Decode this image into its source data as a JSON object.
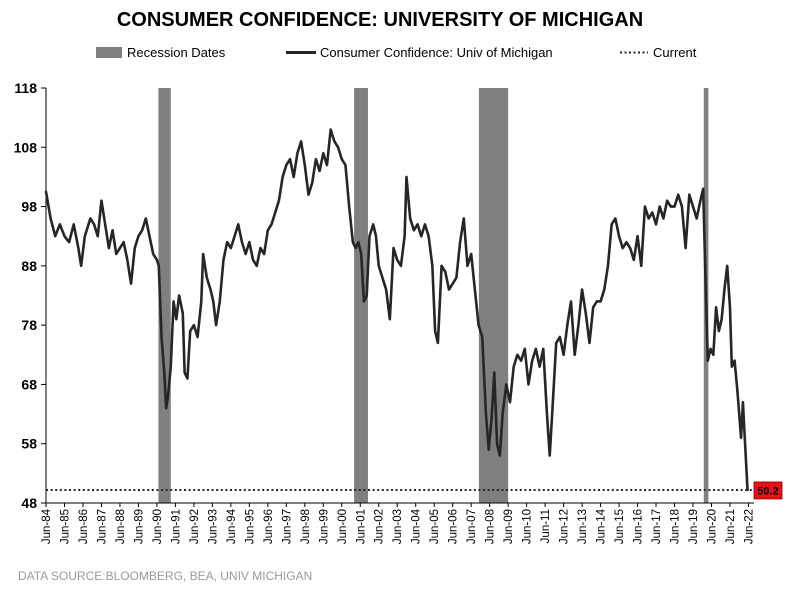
{
  "chart_data": {
    "type": "line",
    "title": "CONSUMER CONFIDENCE: UNIVERSITY OF MICHIGAN",
    "xlabel": "",
    "ylabel": "",
    "ylim": [
      48,
      118
    ],
    "yticks": [
      48,
      58,
      68,
      78,
      88,
      98,
      108,
      118
    ],
    "xlim": [
      1984.5,
      2022.8
    ],
    "x_tick_labels": [
      "Jun-84",
      "Jun-85",
      "Jun-86",
      "Jun-87",
      "Jun-88",
      "Jun-89",
      "Jun-90",
      "Jun-91",
      "Jun-92",
      "Jun-93",
      "Jun-94",
      "Jun-95",
      "Jun-96",
      "Jun-97",
      "Jun-98",
      "Jun-99",
      "Jun-00",
      "Jun-01",
      "Jun-02",
      "Jun-03",
      "Jun-04",
      "Jun-05",
      "Jun-06",
      "Jun-07",
      "Jun-08",
      "Jun-09",
      "Jun-10",
      "Jun-11",
      "Jun-12",
      "Jun-13",
      "Jun-14",
      "Jun-15",
      "Jun-16",
      "Jun-17",
      "Jun-18",
      "Jun-19",
      "Jun-20",
      "Jun-21",
      "Jun-22"
    ],
    "legend": {
      "position": "top",
      "items": [
        {
          "label": "Recession Dates",
          "style": "bar",
          "color": "#7f7f7f"
        },
        {
          "label": "Consumer Confidence: Univ of Michigan",
          "style": "line",
          "color": "#262626"
        },
        {
          "label": "Current",
          "style": "dotted",
          "color": "#262626"
        }
      ]
    },
    "recessions": [
      {
        "start": 1990.583,
        "end": 1991.25
      },
      {
        "start": 2001.167,
        "end": 2001.917
      },
      {
        "start": 2007.917,
        "end": 2009.5
      },
      {
        "start": 2020.083,
        "end": 2020.333
      }
    ],
    "current": {
      "value": 50.2,
      "label": "50.2",
      "color": "#e8111a"
    },
    "series": [
      {
        "name": "Consumer Confidence: Univ of Michigan",
        "color": "#262626",
        "points": [
          [
            1984.5,
            100.5
          ],
          [
            1984.75,
            96
          ],
          [
            1985.0,
            93
          ],
          [
            1985.25,
            95
          ],
          [
            1985.5,
            93
          ],
          [
            1985.75,
            92
          ],
          [
            1986.0,
            95
          ],
          [
            1986.25,
            91
          ],
          [
            1986.4,
            88
          ],
          [
            1986.6,
            93
          ],
          [
            1986.9,
            96
          ],
          [
            1987.1,
            95
          ],
          [
            1987.3,
            93
          ],
          [
            1987.5,
            99
          ],
          [
            1987.7,
            95
          ],
          [
            1987.9,
            91
          ],
          [
            1988.1,
            94
          ],
          [
            1988.3,
            90
          ],
          [
            1988.5,
            91
          ],
          [
            1988.7,
            92
          ],
          [
            1988.9,
            89
          ],
          [
            1989.1,
            85
          ],
          [
            1989.3,
            91
          ],
          [
            1989.5,
            93
          ],
          [
            1989.7,
            94
          ],
          [
            1989.9,
            96
          ],
          [
            1990.1,
            93
          ],
          [
            1990.3,
            90
          ],
          [
            1990.5,
            89
          ],
          [
            1990.6,
            88
          ],
          [
            1990.75,
            76
          ],
          [
            1990.9,
            70
          ],
          [
            1991.0,
            64
          ],
          [
            1991.1,
            66
          ],
          [
            1991.25,
            71
          ],
          [
            1991.4,
            82
          ],
          [
            1991.55,
            79
          ],
          [
            1991.7,
            83
          ],
          [
            1991.9,
            80
          ],
          [
            1992.0,
            70
          ],
          [
            1992.15,
            69
          ],
          [
            1992.3,
            77
          ],
          [
            1992.5,
            78
          ],
          [
            1992.7,
            76
          ],
          [
            1992.9,
            82
          ],
          [
            1993.0,
            90
          ],
          [
            1993.2,
            86
          ],
          [
            1993.4,
            84
          ],
          [
            1993.55,
            82
          ],
          [
            1993.7,
            78
          ],
          [
            1993.9,
            82
          ],
          [
            1994.1,
            89
          ],
          [
            1994.3,
            92
          ],
          [
            1994.5,
            91
          ],
          [
            1994.7,
            93
          ],
          [
            1994.9,
            95
          ],
          [
            1995.1,
            92
          ],
          [
            1995.3,
            90
          ],
          [
            1995.5,
            92
          ],
          [
            1995.7,
            89
          ],
          [
            1995.9,
            88
          ],
          [
            1996.1,
            91
          ],
          [
            1996.3,
            90
          ],
          [
            1996.5,
            94
          ],
          [
            1996.7,
            95
          ],
          [
            1996.9,
            97
          ],
          [
            1997.1,
            99
          ],
          [
            1997.3,
            103
          ],
          [
            1997.5,
            105
          ],
          [
            1997.7,
            106
          ],
          [
            1997.9,
            103
          ],
          [
            1998.1,
            107
          ],
          [
            1998.3,
            109
          ],
          [
            1998.5,
            105
          ],
          [
            1998.7,
            100
          ],
          [
            1998.9,
            102
          ],
          [
            1999.1,
            106
          ],
          [
            1999.3,
            104
          ],
          [
            1999.5,
            107
          ],
          [
            1999.7,
            105
          ],
          [
            1999.9,
            111
          ],
          [
            2000.1,
            109
          ],
          [
            2000.3,
            108
          ],
          [
            2000.5,
            106
          ],
          [
            2000.7,
            105
          ],
          [
            2000.9,
            98
          ],
          [
            2001.1,
            92
          ],
          [
            2001.25,
            91
          ],
          [
            2001.4,
            92
          ],
          [
            2001.55,
            90
          ],
          [
            2001.7,
            82
          ],
          [
            2001.85,
            83
          ],
          [
            2002.0,
            93
          ],
          [
            2002.2,
            95
          ],
          [
            2002.35,
            93
          ],
          [
            2002.5,
            88
          ],
          [
            2002.7,
            86
          ],
          [
            2002.9,
            84
          ],
          [
            2003.1,
            79
          ],
          [
            2003.3,
            91
          ],
          [
            2003.5,
            89
          ],
          [
            2003.7,
            88
          ],
          [
            2003.9,
            93
          ],
          [
            2004.0,
            103
          ],
          [
            2004.2,
            96
          ],
          [
            2004.4,
            94
          ],
          [
            2004.6,
            95
          ],
          [
            2004.8,
            93
          ],
          [
            2005.0,
            95
          ],
          [
            2005.2,
            93
          ],
          [
            2005.4,
            88
          ],
          [
            2005.55,
            77
          ],
          [
            2005.7,
            75
          ],
          [
            2005.9,
            88
          ],
          [
            2006.1,
            87
          ],
          [
            2006.3,
            84
          ],
          [
            2006.5,
            85
          ],
          [
            2006.7,
            86
          ],
          [
            2006.9,
            92
          ],
          [
            2007.1,
            96
          ],
          [
            2007.3,
            88
          ],
          [
            2007.5,
            90
          ],
          [
            2007.7,
            84
          ],
          [
            2007.9,
            78
          ],
          [
            2008.1,
            76
          ],
          [
            2008.3,
            63
          ],
          [
            2008.45,
            57
          ],
          [
            2008.6,
            62
          ],
          [
            2008.75,
            70
          ],
          [
            2008.9,
            58
          ],
          [
            2009.05,
            56
          ],
          [
            2009.2,
            63
          ],
          [
            2009.4,
            68
          ],
          [
            2009.6,
            65
          ],
          [
            2009.8,
            71
          ],
          [
            2010.0,
            73
          ],
          [
            2010.2,
            72
          ],
          [
            2010.4,
            74
          ],
          [
            2010.6,
            68
          ],
          [
            2010.8,
            72
          ],
          [
            2011.0,
            74
          ],
          [
            2011.2,
            71
          ],
          [
            2011.4,
            74
          ],
          [
            2011.6,
            63
          ],
          [
            2011.75,
            56
          ],
          [
            2011.9,
            64
          ],
          [
            2012.1,
            75
          ],
          [
            2012.3,
            76
          ],
          [
            2012.5,
            73
          ],
          [
            2012.7,
            78
          ],
          [
            2012.9,
            82
          ],
          [
            2013.1,
            73
          ],
          [
            2013.3,
            78
          ],
          [
            2013.5,
            84
          ],
          [
            2013.7,
            80
          ],
          [
            2013.9,
            75
          ],
          [
            2014.1,
            81
          ],
          [
            2014.3,
            82
          ],
          [
            2014.5,
            82
          ],
          [
            2014.7,
            84
          ],
          [
            2014.9,
            88
          ],
          [
            2015.1,
            95
          ],
          [
            2015.3,
            96
          ],
          [
            2015.5,
            93
          ],
          [
            2015.7,
            91
          ],
          [
            2015.9,
            92
          ],
          [
            2016.1,
            91
          ],
          [
            2016.3,
            89
          ],
          [
            2016.5,
            93
          ],
          [
            2016.7,
            88
          ],
          [
            2016.9,
            98
          ],
          [
            2017.1,
            96
          ],
          [
            2017.3,
            97
          ],
          [
            2017.5,
            95
          ],
          [
            2017.7,
            98
          ],
          [
            2017.9,
            96
          ],
          [
            2018.1,
            99
          ],
          [
            2018.3,
            98
          ],
          [
            2018.5,
            98
          ],
          [
            2018.7,
            100
          ],
          [
            2018.9,
            98
          ],
          [
            2019.1,
            91
          ],
          [
            2019.3,
            100
          ],
          [
            2019.5,
            98
          ],
          [
            2019.7,
            96
          ],
          [
            2019.9,
            99
          ],
          [
            2020.05,
            101
          ],
          [
            2020.15,
            89
          ],
          [
            2020.3,
            72
          ],
          [
            2020.45,
            74
          ],
          [
            2020.6,
            73
          ],
          [
            2020.75,
            81
          ],
          [
            2020.9,
            77
          ],
          [
            2021.05,
            79
          ],
          [
            2021.2,
            84
          ],
          [
            2021.35,
            88
          ],
          [
            2021.5,
            81
          ],
          [
            2021.6,
            71
          ],
          [
            2021.75,
            72
          ],
          [
            2021.9,
            67
          ],
          [
            2022.0,
            63
          ],
          [
            2022.1,
            59
          ],
          [
            2022.2,
            65
          ],
          [
            2022.3,
            59
          ],
          [
            2022.45,
            50.2
          ]
        ]
      }
    ],
    "source": "DATA SOURCE:BLOOMBERG, BEA, UNIV MICHIGAN"
  }
}
